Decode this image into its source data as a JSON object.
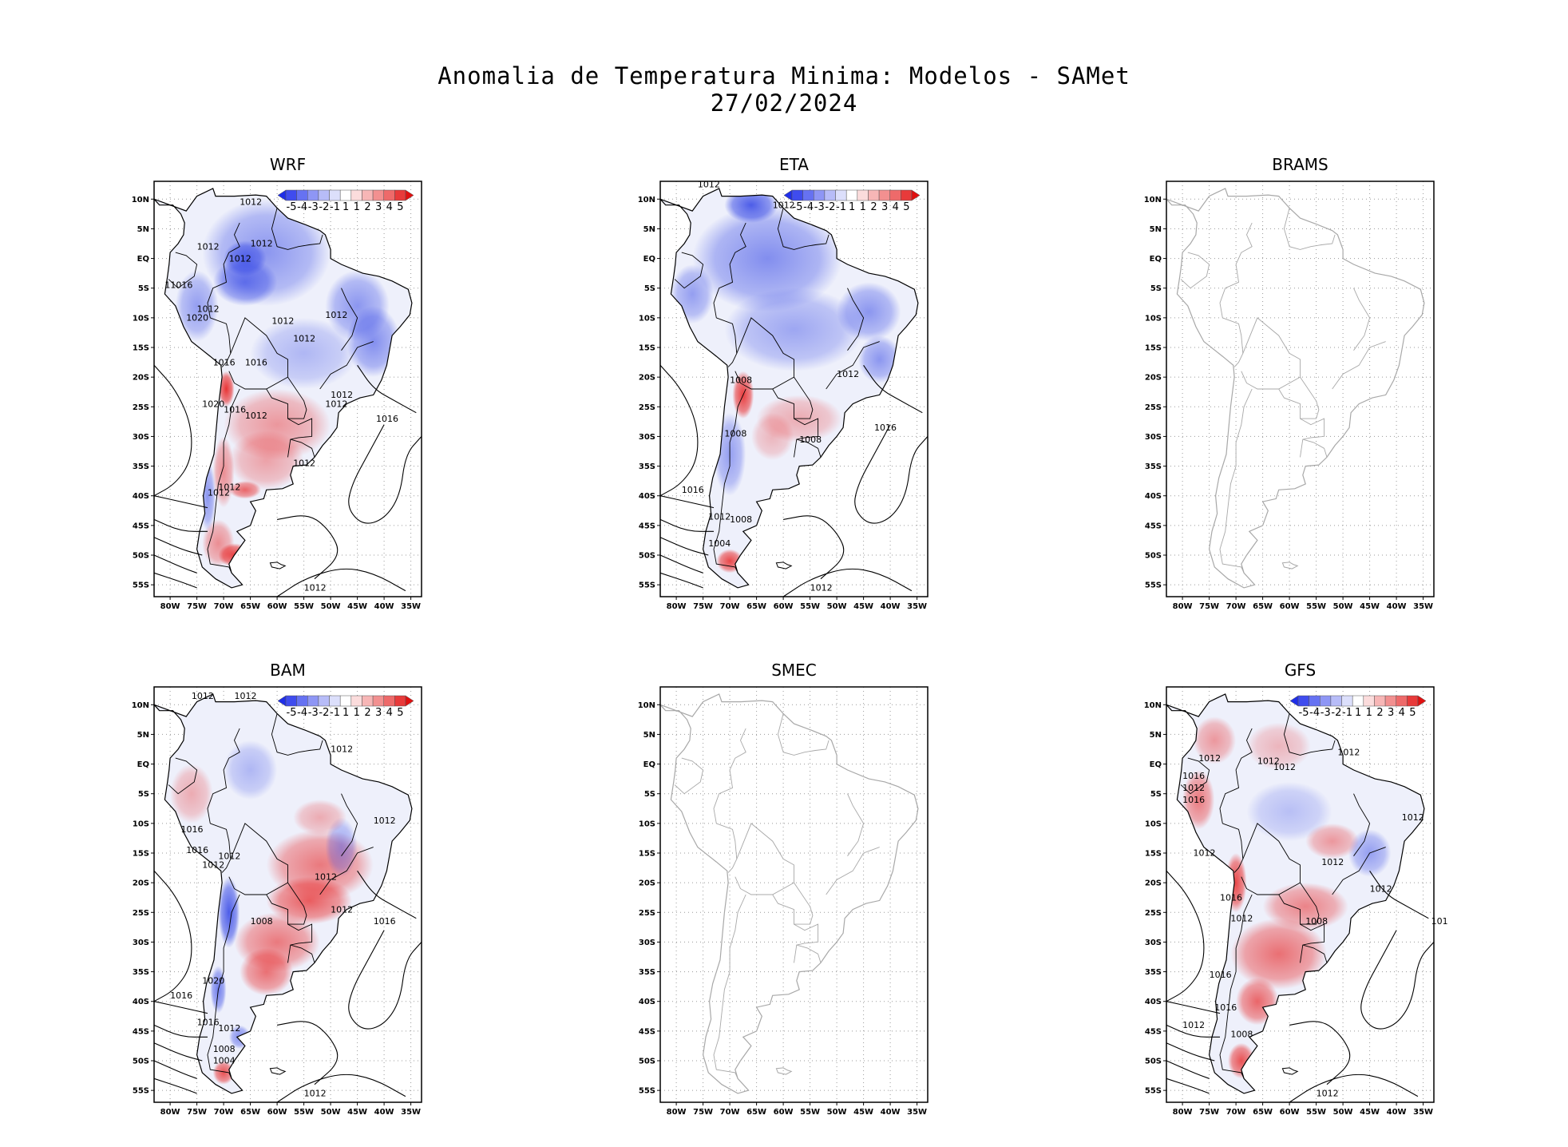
{
  "header": {
    "title": "Anomalia de Temperatura Minima: Modelos - SAMet",
    "date": "27/02/2024"
  },
  "axes": {
    "lat_labels": [
      "10N",
      "5N",
      "EQ",
      "5S",
      "10S",
      "15S",
      "20S",
      "25S",
      "30S",
      "35S",
      "40S",
      "45S",
      "50S",
      "55S"
    ],
    "lon_labels": [
      "80W",
      "75W",
      "70W",
      "65W",
      "60W",
      "55W",
      "50W",
      "45W",
      "40W",
      "35W"
    ]
  },
  "colorbar": {
    "labels": [
      "-5",
      "-4",
      "-3",
      "-2",
      "-1",
      "1",
      "1",
      "2",
      "3",
      "4",
      "5"
    ],
    "colors": [
      "#1f2ee8",
      "#3f4cee",
      "#6672f2",
      "#8e96f5",
      "#b7bcf8",
      "#dcdffb",
      "#ffffff",
      "#fbdcdc",
      "#f7b6b6",
      "#f29090",
      "#ee6a6a",
      "#e83a3a",
      "#e01010"
    ]
  },
  "colors": {
    "cold": "#3a4ce6",
    "warm": "#e82a2a",
    "contour": "#000000",
    "coast_empty": "#a8a8a8",
    "grid": "#9a9a9a"
  },
  "panels": [
    {
      "name": "WRF",
      "has_data": true,
      "isobars": [
        "1012",
        "1012",
        "1012",
        "1012",
        "11016",
        "1012",
        "1020",
        "1012",
        "1016",
        "1016",
        "1012",
        "1020",
        "1012",
        "1016",
        "1012",
        "1012",
        "1012",
        "1012",
        "1012",
        "1012",
        "1016",
        "1012"
      ]
    },
    {
      "name": "ETA",
      "has_data": true,
      "isobars": [
        "1012",
        "1012",
        "1008",
        "1008",
        "1008",
        "1016",
        "1016",
        "1012",
        "1008",
        "1004",
        "1012",
        "1012"
      ]
    },
    {
      "name": "BRAMS",
      "has_data": false,
      "isobars": []
    },
    {
      "name": "BAM",
      "has_data": true,
      "isobars": [
        "1012",
        "1012",
        "1012",
        "1012",
        "1016",
        "1016",
        "1012",
        "1012",
        "1008",
        "1012",
        "1012",
        "1016",
        "1020",
        "1016",
        "1016",
        "1012",
        "1008",
        "1004",
        "1012"
      ]
    },
    {
      "name": "SMEC",
      "has_data": false,
      "isobars": []
    },
    {
      "name": "GFS",
      "has_data": true,
      "isobars": [
        "1012",
        "1012",
        "1012",
        "1012",
        "1016",
        "1012",
        "1016",
        "1012",
        "1012",
        "1012",
        "1012",
        "1016",
        "1008",
        "1012",
        "1016",
        "1016",
        "1012",
        "1008",
        "1012",
        "101"
      ]
    }
  ]
}
